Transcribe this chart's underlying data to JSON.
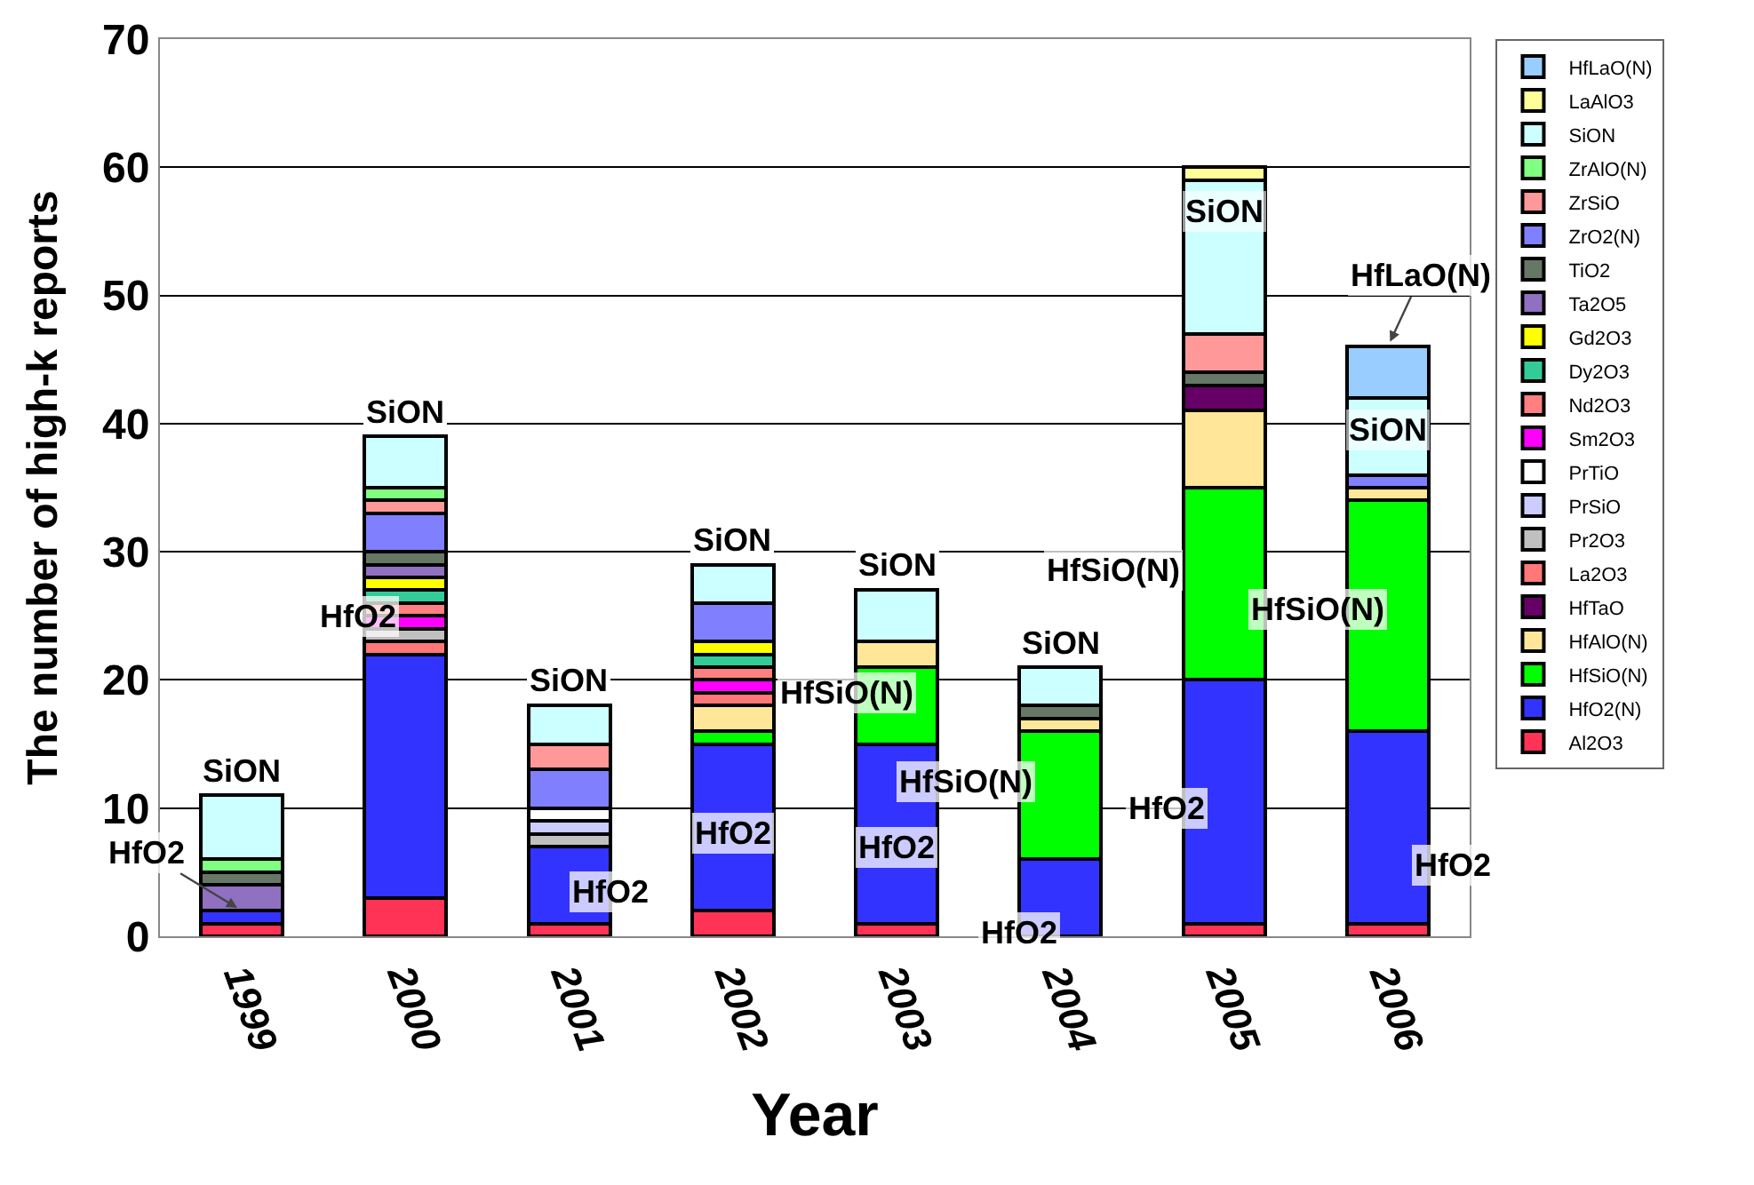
{
  "chart_data": {
    "type": "bar",
    "stacked": true,
    "xlabel": "Year",
    "ylabel": "The number of high-k reports",
    "categories": [
      "1999",
      "2000",
      "2001",
      "2002",
      "2003",
      "2004",
      "2005",
      "2006"
    ],
    "ylim": [
      0,
      70
    ],
    "yticks": [
      0,
      10,
      20,
      30,
      40,
      50,
      60,
      70
    ],
    "grid": "y",
    "legend": "right",
    "series": [
      {
        "name": "Al2O3",
        "color": "#ff3355",
        "values": [
          1,
          3,
          1,
          2,
          1,
          null,
          1,
          1
        ]
      },
      {
        "name": "HfO2(N)",
        "color": "#3333ff",
        "values": [
          1,
          19,
          6,
          13,
          14,
          6,
          19,
          15
        ]
      },
      {
        "name": "HfSiO(N)",
        "color": "#00ff00",
        "values": [
          null,
          null,
          null,
          1,
          6,
          10,
          15,
          18
        ]
      },
      {
        "name": "HfAlO(N)",
        "color": "#ffe699",
        "values": [
          null,
          null,
          null,
          2,
          2,
          1,
          6,
          1
        ]
      },
      {
        "name": "HfTaO",
        "color": "#660066",
        "values": [
          null,
          null,
          null,
          null,
          null,
          null,
          2,
          null
        ]
      },
      {
        "name": "La2O3",
        "color": "#ff7777",
        "values": [
          null,
          1,
          null,
          1,
          null,
          null,
          null,
          null
        ]
      },
      {
        "name": "Pr2O3",
        "color": "#c0c0c0",
        "values": [
          null,
          1,
          1,
          null,
          null,
          null,
          null,
          null
        ]
      },
      {
        "name": "PrSiO",
        "color": "#ccccff",
        "values": [
          null,
          null,
          1,
          null,
          null,
          null,
          null,
          null
        ]
      },
      {
        "name": "PrTiO",
        "color": "#ffffff",
        "values": [
          null,
          null,
          1,
          null,
          null,
          null,
          null,
          null
        ]
      },
      {
        "name": "Sm2O3",
        "color": "#ff00ff",
        "values": [
          null,
          1,
          null,
          1,
          null,
          null,
          null,
          null
        ]
      },
      {
        "name": "Nd2O3",
        "color": "#ff8080",
        "values": [
          null,
          1,
          null,
          1,
          null,
          null,
          null,
          null
        ]
      },
      {
        "name": "Dy2O3",
        "color": "#33cc99",
        "values": [
          null,
          1,
          null,
          1,
          null,
          null,
          null,
          null
        ]
      },
      {
        "name": "Gd2O3",
        "color": "#ffff00",
        "values": [
          null,
          1,
          null,
          1,
          null,
          null,
          null,
          null
        ]
      },
      {
        "name": "Ta2O5",
        "color": "#9070c0",
        "values": [
          2,
          1,
          null,
          null,
          null,
          null,
          null,
          null
        ]
      },
      {
        "name": "TiO2",
        "color": "#667766",
        "values": [
          1,
          1,
          null,
          null,
          null,
          1,
          1,
          null
        ]
      },
      {
        "name": "ZrO2(N)",
        "color": "#8080ff",
        "values": [
          null,
          3,
          3,
          3,
          null,
          null,
          null,
          1
        ]
      },
      {
        "name": "ZrSiO",
        "color": "#ff9999",
        "values": [
          null,
          1,
          2,
          null,
          null,
          null,
          3,
          null
        ]
      },
      {
        "name": "ZrAlO(N)",
        "color": "#80ff80",
        "values": [
          1,
          1,
          null,
          null,
          null,
          null,
          null,
          null
        ]
      },
      {
        "name": "SiON",
        "color": "#ccffff",
        "values": [
          5,
          4,
          3,
          3,
          4,
          3,
          12,
          6
        ]
      },
      {
        "name": "LaAlO3",
        "color": "#ffff99",
        "values": [
          null,
          null,
          null,
          null,
          null,
          null,
          1,
          null
        ]
      },
      {
        "name": "HfLaO(N)",
        "color": "#99ccff",
        "values": [
          null,
          null,
          null,
          null,
          null,
          null,
          null,
          4
        ]
      }
    ],
    "annotations": [
      {
        "text": "SiON",
        "x": "1999",
        "y": 11
      },
      {
        "text": "SiON",
        "x": "2000",
        "y": 39
      },
      {
        "text": "SiON",
        "x": "2001",
        "y": 18
      },
      {
        "text": "SiON",
        "x": "2002",
        "y": 29
      },
      {
        "text": "SiON",
        "x": "2003",
        "y": 27
      },
      {
        "text": "SiON",
        "x": "2004",
        "y": 21
      },
      {
        "text": "SiON",
        "x": "2005",
        "y": 59
      },
      {
        "text": "HfLaO(N)",
        "x": "2006",
        "y": 46
      },
      {
        "text": "SiON",
        "x": "2006",
        "y": 42
      },
      {
        "text": "HfO2",
        "x": "1999",
        "y": 2
      },
      "HfO2",
      "HfO2",
      "HfO2",
      "HfSiO(N)",
      "HfO2",
      "HfSiO(N)",
      "HfO2",
      "HfSiO(N)",
      "HfO2",
      "HfSiO(N)",
      "HfO2"
    ]
  }
}
